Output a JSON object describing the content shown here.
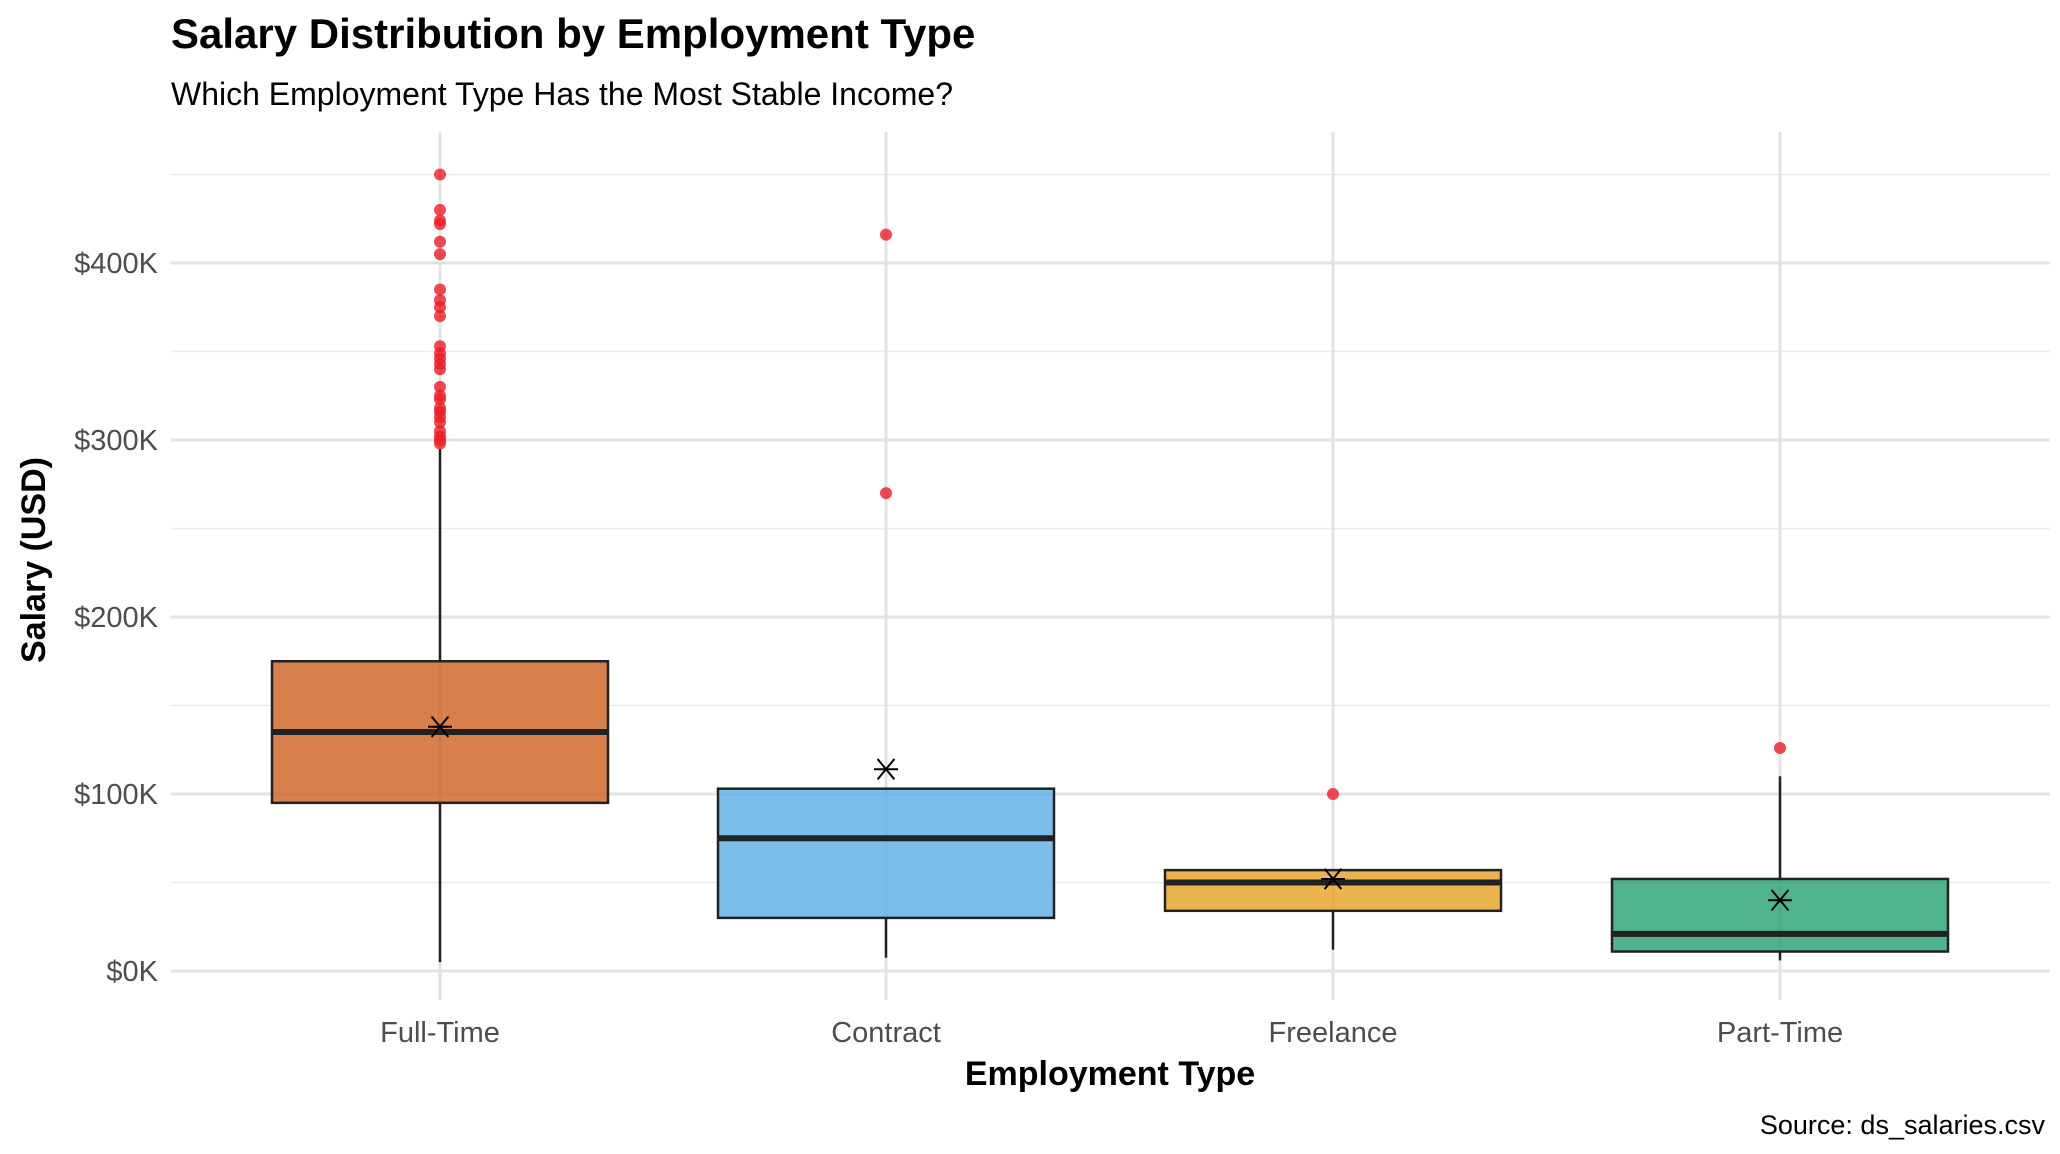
{
  "chart_data": {
    "type": "box",
    "title": "Salary Distribution by Employment Type",
    "subtitle": "Which Employment Type Has the Most Stable Income?",
    "xlabel": "Employment Type",
    "ylabel": "Salary (USD)",
    "caption": "Source: ds_salaries.csv",
    "ylim": [
      -15000,
      472000
    ],
    "y_ticks": [
      {
        "value": 0,
        "label": "$0K"
      },
      {
        "value": 100000,
        "label": "$100K"
      },
      {
        "value": 200000,
        "label": "$200K"
      },
      {
        "value": 300000,
        "label": "$300K"
      },
      {
        "value": 400000,
        "label": "$400K"
      }
    ],
    "y_minor_ticks": [
      50000,
      150000,
      250000,
      350000,
      450000
    ],
    "grid": true,
    "legend": "none",
    "mean_marker": "asterisk",
    "outlier_color": "#ee1c25",
    "box_outline_color": "#222222",
    "categories": [
      "Full-Time",
      "Contract",
      "Freelance",
      "Part-Time"
    ],
    "boxes": [
      {
        "category": "Full-Time",
        "color": "#cd5c1a",
        "min": 5000,
        "q1": 95000,
        "median": 135000,
        "q3": 175000,
        "max": 295000,
        "mean": 138000,
        "outliers": [
          450000,
          430000,
          424000,
          422000,
          412000,
          405000,
          385000,
          379000,
          375000,
          370000,
          353000,
          349000,
          346000,
          343000,
          340000,
          330000,
          325000,
          323000,
          318000,
          316000,
          313000,
          310000,
          305000,
          302000,
          300000,
          298000
        ]
      },
      {
        "category": "Contract",
        "color": "#56aae6",
        "min": 7500,
        "q1": 30000,
        "median": 75000,
        "q3": 103000,
        "max": 103000,
        "mean": 114000,
        "outliers": [
          416000,
          270000
        ]
      },
      {
        "category": "Freelance",
        "color": "#e69f1e",
        "min": 12000,
        "q1": 34000,
        "median": 50000,
        "q3": 57000,
        "max": 57000,
        "mean": 52000,
        "outliers": [
          100000
        ]
      },
      {
        "category": "Part-Time",
        "color": "#1e9e6d",
        "min": 6000,
        "q1": 11000,
        "median": 21000,
        "q3": 52000,
        "max": 110000,
        "mean": 40000,
        "outliers": [
          126000
        ]
      }
    ]
  }
}
